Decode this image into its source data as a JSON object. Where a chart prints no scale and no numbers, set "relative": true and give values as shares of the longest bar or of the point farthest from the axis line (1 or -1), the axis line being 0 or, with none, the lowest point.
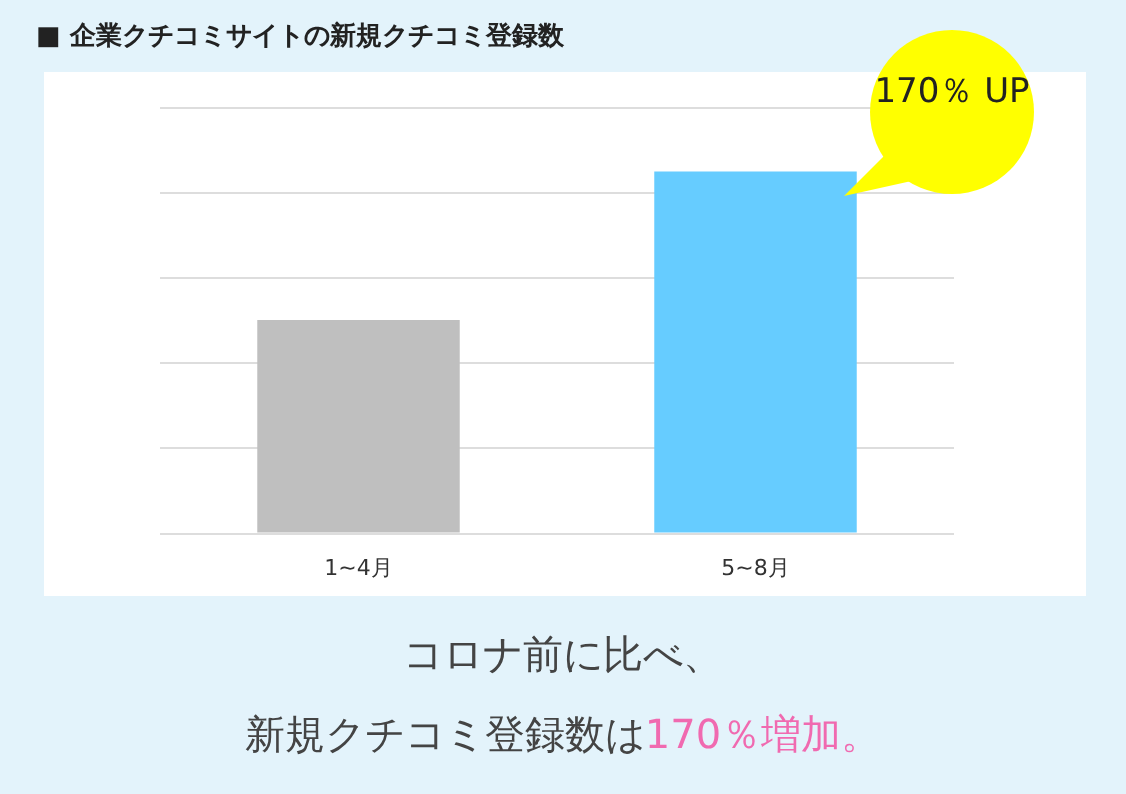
{
  "chart_data": {
    "type": "bar",
    "title": "■ 企業クチコミサイトの新規クチコミ登録数",
    "categories": [
      "1~4月",
      "5~8月"
    ],
    "colors": [
      "#bfbfbf",
      "#66ccff"
    ],
    "values": [
      0.59,
      1
    ],
    "relative": true,
    "grid": "y",
    "annotations": [
      "170％ UP",
      "コロナ前に比べ、",
      "新規クチコミ登録数は",
      "170％増加。"
    ]
  }
}
